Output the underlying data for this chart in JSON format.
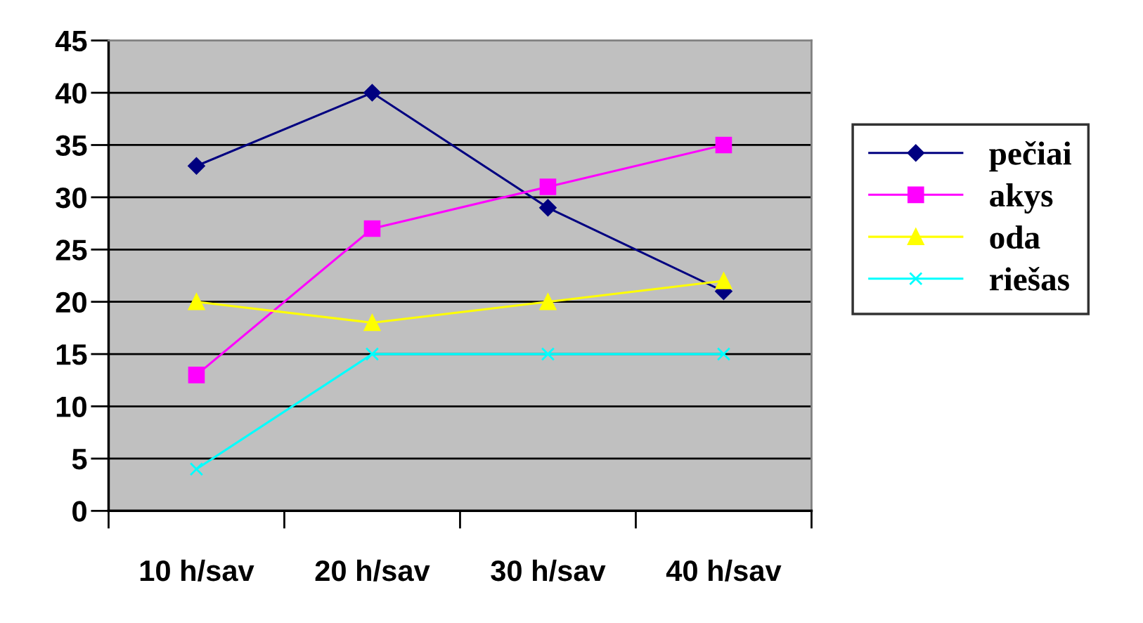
{
  "chart_data": {
    "type": "line",
    "categories": [
      "10 h/sav",
      "20 h/sav",
      "30 h/sav",
      "40 h/sav"
    ],
    "series": [
      {
        "name": "pečiai",
        "color": "#000080",
        "marker": "diamond",
        "values": [
          33,
          40,
          29,
          21
        ]
      },
      {
        "name": "akys",
        "color": "#ff00ff",
        "marker": "square",
        "values": [
          13,
          27,
          31,
          35
        ]
      },
      {
        "name": "oda",
        "color": "#ffff00",
        "marker": "triangle",
        "values": [
          20,
          18,
          20,
          22
        ]
      },
      {
        "name": "riešas",
        "color": "#00ffff",
        "marker": "cross",
        "values": [
          4,
          15,
          15,
          15
        ]
      }
    ],
    "ylim": [
      0,
      45
    ],
    "yticks": [
      0,
      5,
      10,
      15,
      20,
      25,
      30,
      35,
      40,
      45
    ],
    "grid": "y",
    "legend": "right"
  }
}
